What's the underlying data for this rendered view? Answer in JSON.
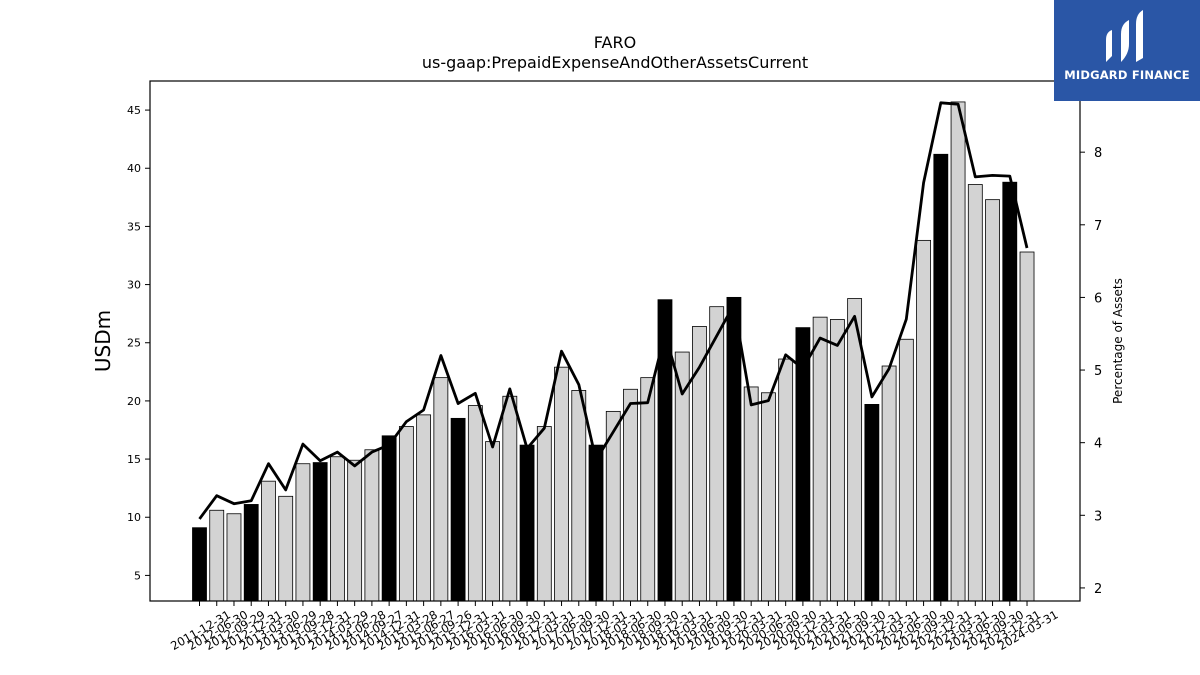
{
  "logo": {
    "text": "MIDGARD FINANCE",
    "color": "#2a56a6"
  },
  "chart_data": {
    "type": "bar",
    "title": "FARO",
    "subtitle": "us-gaap:PrepaidExpenseAndOtherAssetsCurrent",
    "ylabel": "USDm",
    "y2label": "Percentage of Assets",
    "ylim": [
      2.8,
      47.5
    ],
    "y2lim": [
      1.82,
      8.98
    ],
    "yticks": [
      5,
      10,
      15,
      20,
      25,
      30,
      35,
      40,
      45
    ],
    "y2ticks": [
      2,
      3,
      4,
      5,
      6,
      7,
      8
    ],
    "grid": false,
    "legend": "none",
    "categories": [
      "2011-12-31",
      "2012-06-30",
      "2012-09-29",
      "2012-12-31",
      "2013-03-30",
      "2013-06-29",
      "2013-09-28",
      "2013-12-31",
      "2014-03-29",
      "2014-06-28",
      "2014-09-27",
      "2014-12-31",
      "2015-03-28",
      "2015-06-27",
      "2015-09-26",
      "2015-12-31",
      "2016-03-31",
      "2016-06-30",
      "2016-09-30",
      "2016-12-31",
      "2017-03-31",
      "2017-06-30",
      "2017-09-30",
      "2017-12-31",
      "2018-03-31",
      "2018-06-30",
      "2018-09-30",
      "2018-12-31",
      "2019-03-31",
      "2019-06-30",
      "2019-09-30",
      "2019-12-31",
      "2020-03-31",
      "2020-06-30",
      "2020-09-30",
      "2020-12-31",
      "2021-03-31",
      "2021-06-30",
      "2021-09-30",
      "2021-12-31",
      "2022-03-31",
      "2022-06-30",
      "2022-09-30",
      "2022-12-31",
      "2023-03-31",
      "2023-06-30",
      "2023-09-30",
      "2023-12-31",
      "2024-03-31"
    ],
    "series": [
      {
        "type": "bar",
        "values": [
          9.1,
          10.6,
          10.3,
          11.1,
          13.1,
          11.8,
          14.6,
          14.7,
          15.2,
          14.9,
          15.8,
          17.0,
          17.8,
          18.8,
          22.0,
          18.5,
          19.6,
          16.5,
          20.4,
          16.2,
          17.8,
          22.9,
          20.9,
          16.2,
          19.1,
          21.0,
          22.0,
          28.7,
          24.2,
          26.4,
          28.1,
          28.9,
          21.2,
          20.7,
          23.6,
          26.3,
          27.2,
          27.0,
          28.8,
          19.7,
          23.0,
          25.3,
          33.8,
          41.2,
          45.7,
          38.6,
          37.3,
          38.8,
          32.8
        ],
        "highlight": [
          true,
          false,
          false,
          true,
          false,
          false,
          false,
          true,
          false,
          false,
          false,
          true,
          false,
          false,
          false,
          true,
          false,
          false,
          false,
          true,
          false,
          false,
          false,
          true,
          false,
          false,
          false,
          true,
          false,
          false,
          false,
          true,
          false,
          false,
          false,
          true,
          false,
          false,
          false,
          true,
          false,
          false,
          false,
          true,
          false,
          false,
          false,
          true,
          false
        ],
        "colors": {
          "highlight": "#000000",
          "normal": "#d3d3d3",
          "edge": "#000000"
        }
      },
      {
        "type": "line",
        "axis": "right",
        "values": [
          2.95,
          3.27,
          3.16,
          3.2,
          3.71,
          3.35,
          3.98,
          3.75,
          3.87,
          3.68,
          3.87,
          3.97,
          4.29,
          4.45,
          5.2,
          4.54,
          4.68,
          3.94,
          4.74,
          3.92,
          4.2,
          5.26,
          4.8,
          3.76,
          4.15,
          4.54,
          4.55,
          5.5,
          4.67,
          5.04,
          5.47,
          5.9,
          4.52,
          4.58,
          5.21,
          5.02,
          5.44,
          5.34,
          5.74,
          4.63,
          5.02,
          5.7,
          7.58,
          8.68,
          8.66,
          7.66,
          7.68,
          7.67,
          6.68
        ],
        "color": "#000000"
      }
    ]
  }
}
